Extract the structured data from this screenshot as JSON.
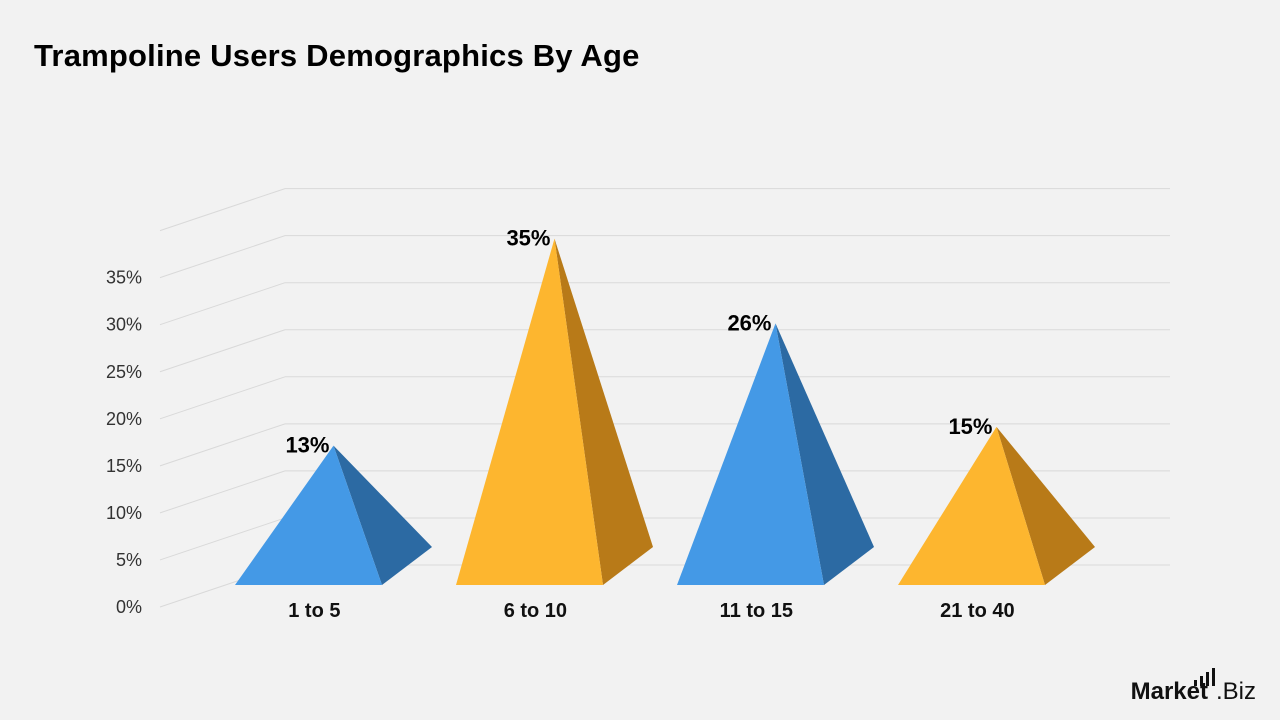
{
  "title": "Trampoline Users Demographics By Age",
  "brand": {
    "part1": "Market",
    "part2": ".Biz"
  },
  "colors": {
    "blue": "#4499e6",
    "blue_dark": "#2c6aa3",
    "yellow": "#fdb62f",
    "yellow_dark": "#b87a18",
    "grid": "#d9d9d9",
    "background": "#f2f2f2"
  },
  "chart_data": {
    "type": "bar",
    "style": "3d-pyramid",
    "title": "Trampoline Users Demographics By Age",
    "categories": [
      "1 to 5",
      "6 to 10",
      "11 to 15",
      "21 to 40"
    ],
    "values": [
      13,
      35,
      26,
      15
    ],
    "value_labels": [
      "13%",
      "35%",
      "26%",
      "15%"
    ],
    "bar_colors": [
      "blue",
      "yellow",
      "blue",
      "yellow"
    ],
    "ylim": [
      0,
      40
    ],
    "yticks": [
      0,
      5,
      10,
      15,
      20,
      25,
      30,
      35
    ],
    "ytick_labels": [
      "0%",
      "5%",
      "10%",
      "15%",
      "20%",
      "25%",
      "30%",
      "35%"
    ],
    "grid": true,
    "legend": "none",
    "xlabel": "",
    "ylabel": ""
  }
}
